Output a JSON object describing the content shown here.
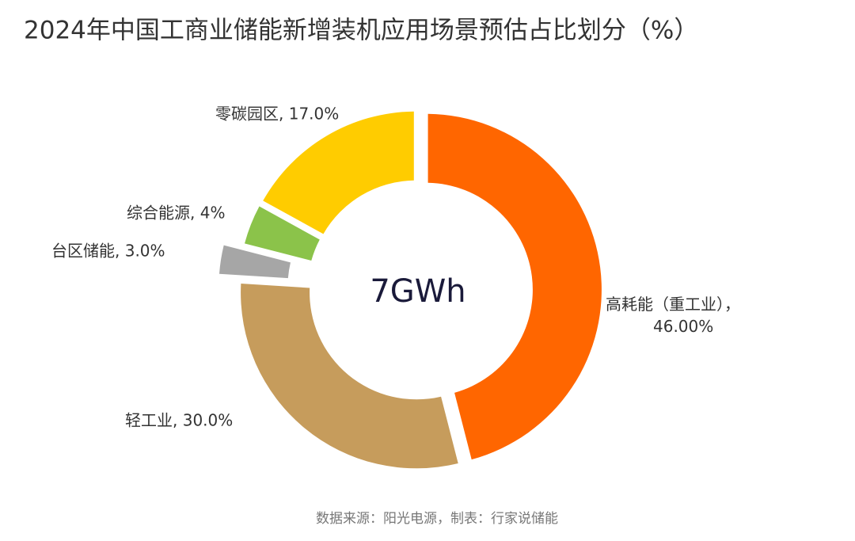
{
  "chart_data": {
    "type": "donut",
    "title": "2024年中国工商业储能新增装机应用场景预估占比划分（%）",
    "values": [
      46.0,
      30.0,
      3.0,
      4,
      17.0
    ],
    "value_labels": [
      "高耗能（重工业），46.00%",
      "轻工业, 30.0%",
      "台区储能, 3.0%",
      "综合能源, 4%",
      "零碳园区, 17.0%"
    ],
    "colors": [
      "#ff6600",
      "#c69c5c",
      "#a6a6a6",
      "#8bc34a",
      "#ffcc00"
    ],
    "center_label": "7GWh",
    "source": "数据来源：阳光电源，制表：行家说储能"
  }
}
